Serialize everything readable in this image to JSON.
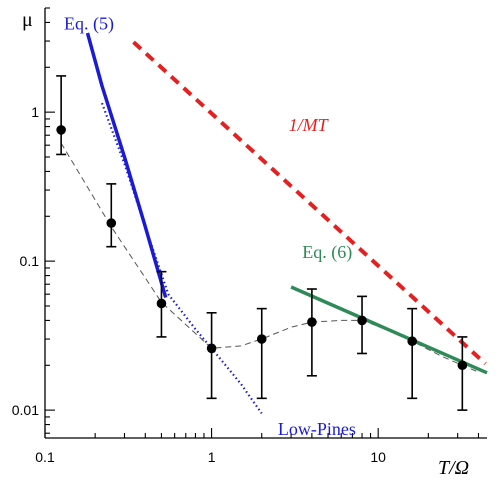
{
  "chart_data": {
    "type": "scatter",
    "xscale": "log",
    "yscale": "log",
    "xlim": [
      0.1,
      45
    ],
    "ylim": [
      0.0065,
      5
    ],
    "xlabel": "T/Ω",
    "ylabel": "μ",
    "grid": false,
    "x_ticks": [
      {
        "value": 0.1,
        "label": "0.1"
      },
      {
        "value": 1,
        "label": "1"
      },
      {
        "value": 10,
        "label": "10"
      }
    ],
    "y_ticks": [
      {
        "value": 0.01,
        "label": "0.01"
      },
      {
        "value": 0.1,
        "label": "0.1"
      },
      {
        "value": 1,
        "label": "1"
      }
    ],
    "series": [
      {
        "kind": "points_with_errorbars",
        "color": "#000000",
        "points": [
          {
            "x": 0.125,
            "y": 0.76,
            "lo": 0.52,
            "hi": 1.75
          },
          {
            "x": 0.25,
            "y": 0.18,
            "lo": 0.125,
            "hi": 0.33
          },
          {
            "x": 0.5,
            "y": 0.052,
            "lo": 0.031,
            "hi": 0.085
          },
          {
            "x": 1,
            "y": 0.026,
            "lo": 0.012,
            "hi": 0.045
          },
          {
            "x": 2,
            "y": 0.03,
            "lo": 0.012,
            "hi": 0.048
          },
          {
            "x": 4,
            "y": 0.039,
            "lo": 0.017,
            "hi": 0.065
          },
          {
            "x": 8,
            "y": 0.04,
            "lo": 0.024,
            "hi": 0.058
          },
          {
            "x": 16,
            "y": 0.029,
            "lo": 0.012,
            "hi": 0.048
          },
          {
            "x": 32,
            "y": 0.02,
            "lo": 0.01,
            "hi": 0.031
          }
        ]
      },
      {
        "kind": "guide_line",
        "color": "#555555",
        "dash": "6,4",
        "points": [
          [
            0.125,
            0.62
          ],
          [
            0.25,
            0.17
          ],
          [
            0.5,
            0.053
          ],
          [
            1,
            0.026
          ],
          [
            1.5,
            0.027
          ],
          [
            2,
            0.03
          ],
          [
            3,
            0.036
          ],
          [
            4,
            0.039
          ],
          [
            6,
            0.04
          ],
          [
            8,
            0.04
          ],
          [
            12,
            0.034
          ],
          [
            16,
            0.029
          ],
          [
            24,
            0.023
          ],
          [
            32,
            0.02
          ],
          [
            40,
            0.018
          ]
        ]
      },
      {
        "kind": "line",
        "label": "Eq. (5)",
        "color": "#1b1bd6",
        "style": "solid",
        "points": [
          [
            0.18,
            3.4
          ],
          [
            0.22,
            1.5
          ],
          [
            0.3,
            0.5
          ],
          [
            0.4,
            0.17
          ],
          [
            0.53,
            0.057
          ]
        ]
      },
      {
        "kind": "line",
        "label": "Low-Pines",
        "color": "#1b1bd6",
        "style": "dotted",
        "points": [
          [
            0.22,
            1.15
          ],
          [
            0.3,
            0.45
          ],
          [
            0.4,
            0.17
          ],
          [
            0.55,
            0.06
          ],
          [
            0.8,
            0.035
          ],
          [
            1,
            0.026
          ],
          [
            1.5,
            0.015
          ],
          [
            2,
            0.0095
          ]
        ]
      },
      {
        "kind": "line",
        "label": "Eq. (6)",
        "color": "#2e8b57",
        "style": "solid",
        "points": [
          [
            3,
            0.067
          ],
          [
            45,
            0.0178
          ]
        ]
      },
      {
        "kind": "line",
        "label": "1/MT",
        "color": "#e52020",
        "style": "dashed",
        "points": [
          [
            0.34,
            2.95
          ],
          [
            44,
            0.0205
          ]
        ]
      }
    ],
    "annotations": [
      {
        "text": "Eq. (5)",
        "x": 0.13,
        "y": 3.6,
        "color": "#1b1bd6",
        "style": "normal"
      },
      {
        "text": "1/MT",
        "x": 2.9,
        "y": 0.75,
        "color": "#e52020",
        "style": "italic"
      },
      {
        "text": "Eq. (6)",
        "x": 3.5,
        "y": 0.105,
        "color": "#2e8b57",
        "style": "normal"
      },
      {
        "text": "Low-Pines",
        "x": 2.5,
        "y": 0.0068,
        "color": "#1b1bd6",
        "style": "normal"
      }
    ]
  }
}
